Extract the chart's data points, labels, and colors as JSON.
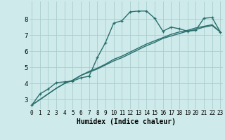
{
  "xlabel": "Humidex (Indice chaleur)",
  "background_color": "#ceeaea",
  "grid_color": "#aacece",
  "line_color": "#2a6e6e",
  "x_ticks": [
    0,
    1,
    2,
    3,
    4,
    5,
    6,
    7,
    8,
    9,
    10,
    11,
    12,
    13,
    14,
    15,
    16,
    17,
    18,
    19,
    20,
    21,
    22,
    23
  ],
  "y_ticks": [
    3,
    4,
    5,
    6,
    7,
    8
  ],
  "ylim": [
    2.4,
    9.1
  ],
  "xlim": [
    -0.3,
    23.3
  ],
  "line1_x": [
    0,
    1,
    2,
    3,
    4,
    5,
    6,
    7,
    8,
    9,
    10,
    11,
    12,
    13,
    14,
    15,
    16,
    17,
    18,
    19,
    20,
    21,
    22,
    23
  ],
  "line1_y": [
    2.65,
    3.35,
    3.65,
    4.05,
    4.1,
    4.15,
    4.35,
    4.45,
    5.6,
    6.55,
    7.75,
    7.9,
    8.45,
    8.5,
    8.5,
    8.05,
    7.25,
    7.5,
    7.4,
    7.25,
    7.3,
    8.05,
    8.1,
    7.2
  ],
  "line2_x": [
    0,
    1,
    2,
    3,
    4,
    5,
    6,
    7,
    8,
    9,
    10,
    11,
    12,
    13,
    14,
    15,
    16,
    17,
    18,
    19,
    20,
    21,
    22,
    23
  ],
  "line2_y": [
    2.65,
    3.0,
    3.35,
    3.7,
    4.0,
    4.2,
    4.5,
    4.7,
    4.9,
    5.15,
    5.4,
    5.6,
    5.85,
    6.1,
    6.35,
    6.55,
    6.8,
    6.95,
    7.1,
    7.25,
    7.35,
    7.5,
    7.6,
    7.2
  ],
  "line3_x": [
    0,
    1,
    2,
    3,
    4,
    5,
    6,
    7,
    8,
    9,
    10,
    11,
    12,
    13,
    14,
    15,
    16,
    17,
    18,
    19,
    20,
    21,
    22,
    23
  ],
  "line3_y": [
    2.65,
    3.0,
    3.35,
    3.7,
    4.0,
    4.2,
    4.5,
    4.75,
    4.95,
    5.2,
    5.5,
    5.7,
    5.95,
    6.2,
    6.45,
    6.65,
    6.85,
    7.05,
    7.2,
    7.3,
    7.45,
    7.55,
    7.65,
    7.2
  ],
  "tick_fontsize_x": 5.5,
  "tick_fontsize_y": 6.5,
  "xlabel_fontsize": 7.0,
  "linewidth": 1.0,
  "marker": "+",
  "markersize": 3.5
}
